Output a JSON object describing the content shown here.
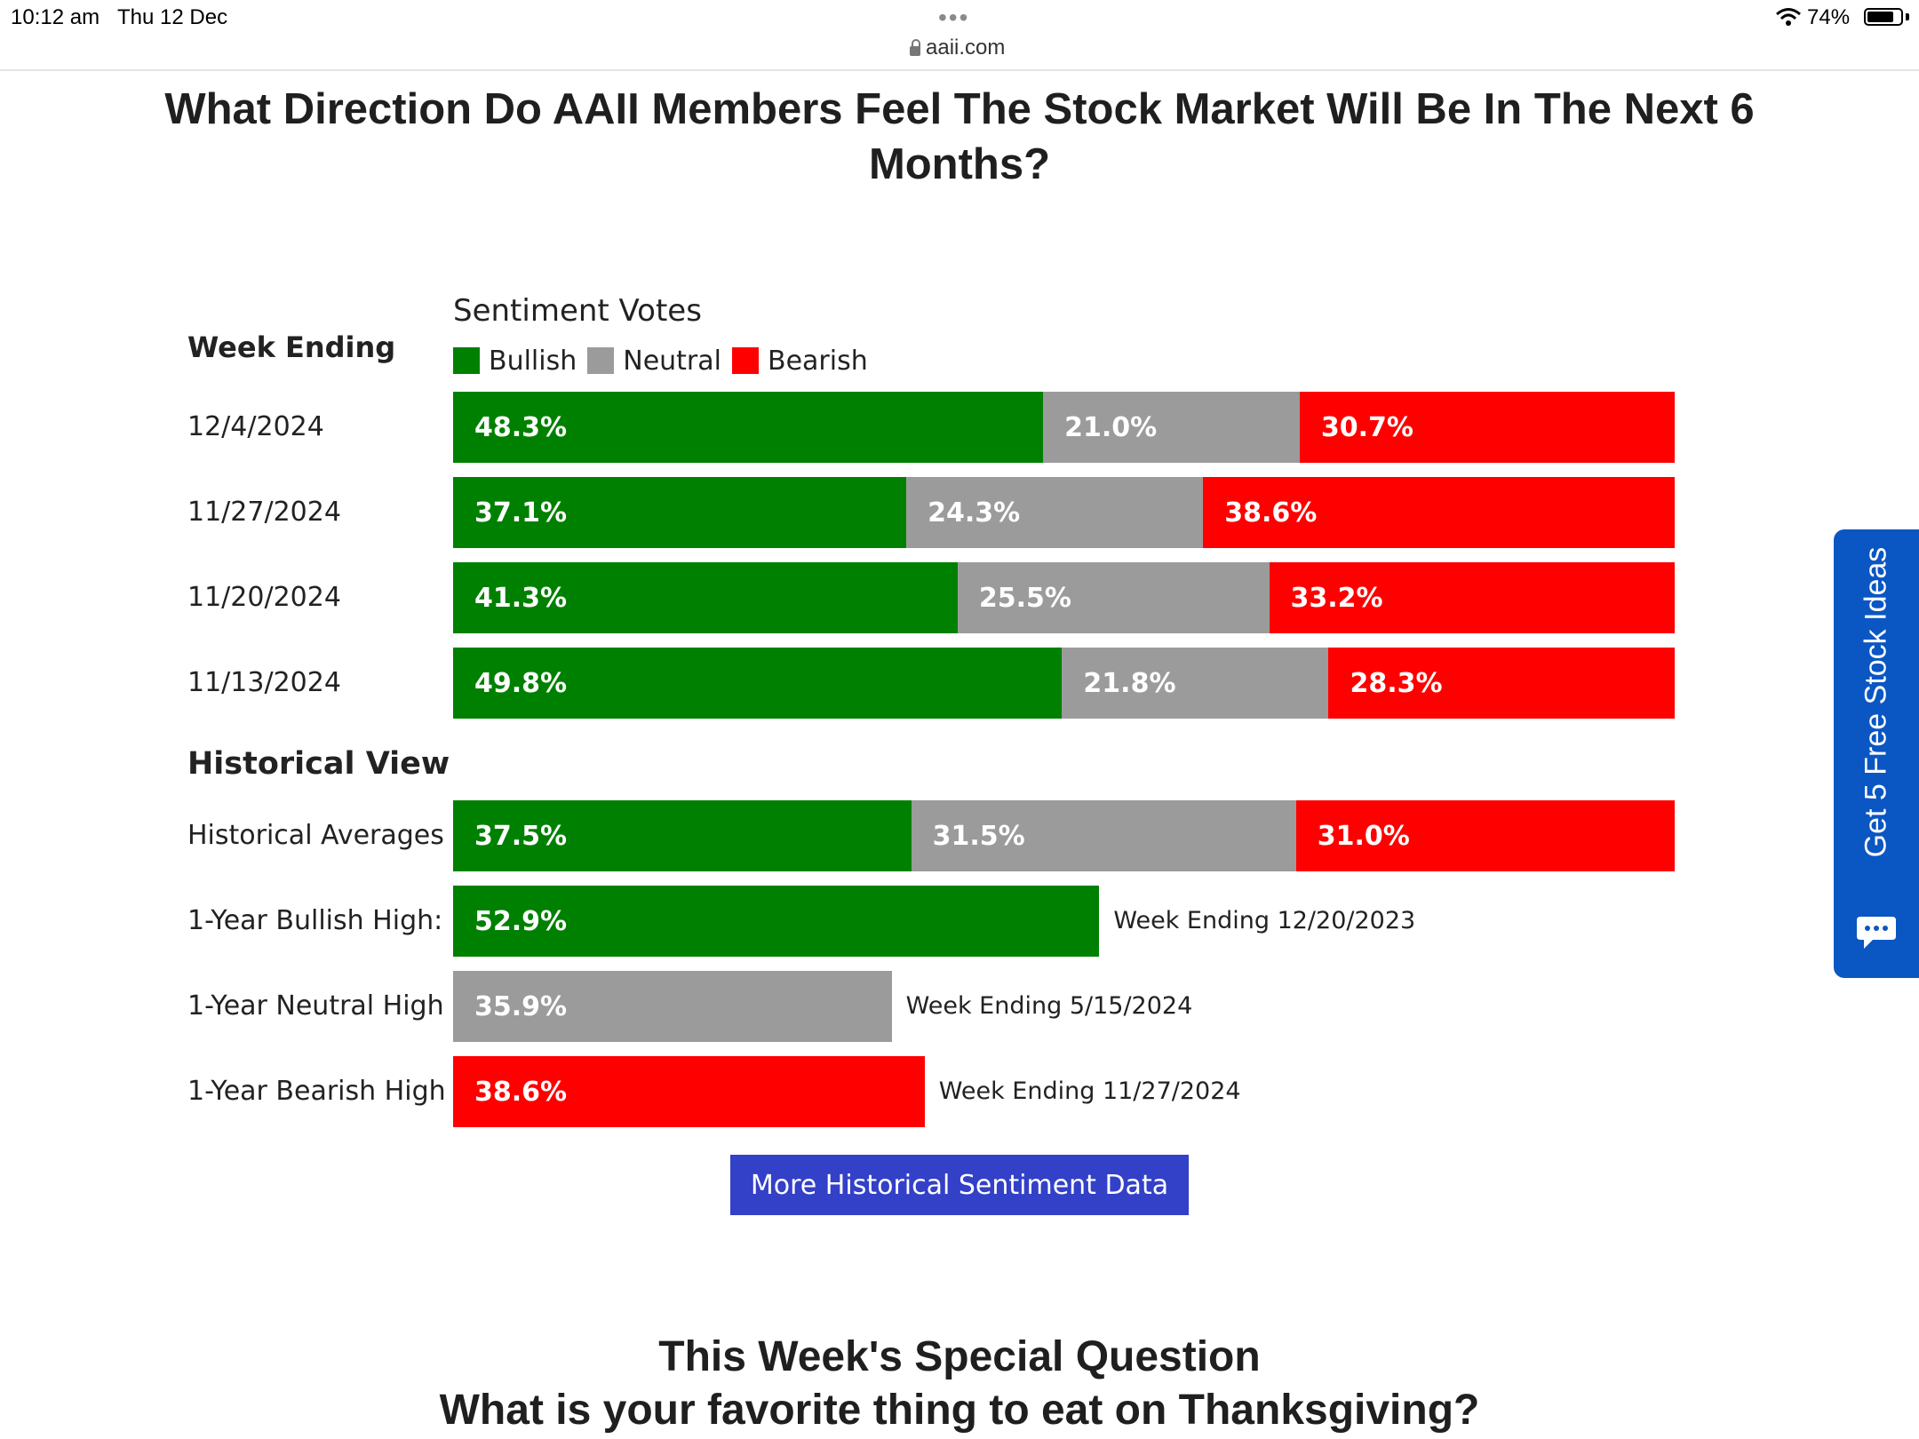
{
  "status_bar": {
    "time": "10:12 am",
    "date": "Thu 12 Dec",
    "url": "aaii.com",
    "battery": "74%"
  },
  "page": {
    "title": "What Direction Do AAII Members Feel The Stock Market Will Be In The Next 6 Months?",
    "week_ending_label": "Week Ending",
    "sentiment_votes_label": "Sentiment Votes",
    "historical_title": "Historical View",
    "more_button": "More Historical Sentiment Data",
    "special_heading": "This Week's Special Question",
    "special_question": "What is your favorite thing to eat on Thanksgiving?",
    "side_tab": "Get 5 Free Stock Ideas"
  },
  "colors": {
    "bullish": "#008000",
    "neutral": "#9b9b9b",
    "bearish": "#ff0000",
    "button": "#3340c8",
    "side_tab": "#0a56c2"
  },
  "chart_data": {
    "type": "bar",
    "stacked": true,
    "title": "Sentiment Votes",
    "legend": [
      "Bullish",
      "Neutral",
      "Bearish"
    ],
    "legend_position": "top-left",
    "weekly": [
      {
        "label": "12/4/2024",
        "bullish": 48.3,
        "neutral": 21.0,
        "bearish": 30.7,
        "bullish_text": "48.3%",
        "neutral_text": "21.0%",
        "bearish_text": "30.7%"
      },
      {
        "label": "11/27/2024",
        "bullish": 37.1,
        "neutral": 24.3,
        "bearish": 38.6,
        "bullish_text": "37.1%",
        "neutral_text": "24.3%",
        "bearish_text": "38.6%"
      },
      {
        "label": "11/20/2024",
        "bullish": 41.3,
        "neutral": 25.5,
        "bearish": 33.2,
        "bullish_text": "41.3%",
        "neutral_text": "25.5%",
        "bearish_text": "33.2%"
      },
      {
        "label": "11/13/2024",
        "bullish": 49.8,
        "neutral": 21.8,
        "bearish": 28.3,
        "bullish_text": "49.8%",
        "neutral_text": "21.8%",
        "bearish_text": "28.3%"
      }
    ],
    "historical_averages": {
      "label": "Historical Averages",
      "bullish": 37.5,
      "neutral": 31.5,
      "bearish": 31.0,
      "bullish_text": "37.5%",
      "neutral_text": "31.5%",
      "bearish_text": "31.0%"
    },
    "highs": [
      {
        "label": "1-Year Bullish High:",
        "kind": "bullish",
        "value": 52.9,
        "value_text": "52.9%",
        "note": "Week Ending 12/20/2023"
      },
      {
        "label": "1-Year Neutral High",
        "kind": "neutral",
        "value": 35.9,
        "value_text": "35.9%",
        "note": "Week Ending 5/15/2024"
      },
      {
        "label": "1-Year Bearish High",
        "kind": "bearish",
        "value": 38.6,
        "value_text": "38.6%",
        "note": "Week Ending 11/27/2024"
      }
    ]
  }
}
